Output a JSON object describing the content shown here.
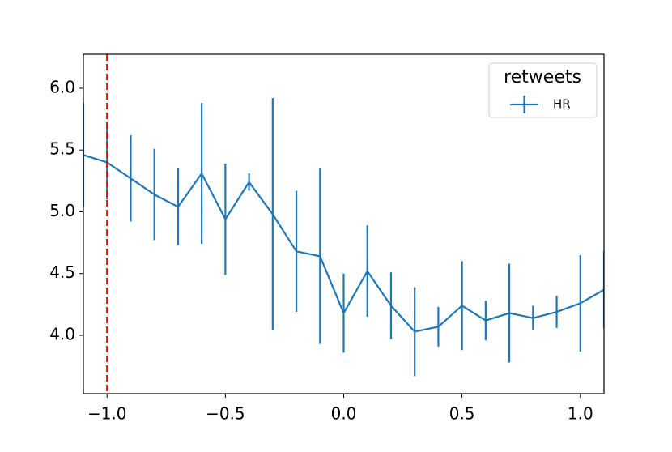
{
  "chart_data": {
    "type": "errorbar-line",
    "x": [
      -1.1,
      -1.0,
      -0.9,
      -0.8,
      -0.7,
      -0.6,
      -0.5,
      -0.4,
      -0.3,
      -0.2,
      -0.1,
      0.0,
      0.1,
      0.2,
      0.3,
      0.4,
      0.5,
      0.6,
      0.7,
      0.8,
      0.9,
      1.0,
      1.1
    ],
    "series": [
      {
        "name": "HR",
        "color": "#1f77b4",
        "values": [
          5.46,
          5.4,
          5.27,
          5.14,
          5.04,
          5.31,
          4.94,
          5.24,
          4.98,
          4.68,
          4.64,
          4.18,
          4.52,
          4.24,
          4.03,
          4.07,
          4.24,
          4.12,
          4.18,
          4.14,
          4.19,
          4.26,
          4.37
        ],
        "errors": [
          0.42,
          0.3,
          0.35,
          0.37,
          0.31,
          0.57,
          0.45,
          0.07,
          0.94,
          0.49,
          0.71,
          0.32,
          0.37,
          0.27,
          0.36,
          0.16,
          0.36,
          0.16,
          0.4,
          0.1,
          0.13,
          0.39,
          0.31
        ]
      }
    ],
    "legend_title": "retweets",
    "legend": "upper right",
    "vline": {
      "x": -1.0,
      "color": "#ff0000",
      "style": "dashed"
    },
    "xlim": [
      -1.1,
      1.1
    ],
    "xticks": [
      {
        "value": -1.0,
        "label": "−1.0"
      },
      {
        "value": -0.5,
        "label": "−0.5"
      },
      {
        "value": 0.0,
        "label": "0.0"
      },
      {
        "value": 0.5,
        "label": "0.5"
      },
      {
        "value": 1.0,
        "label": "1.0"
      }
    ],
    "ylim": [
      3.528,
      6.275
    ],
    "yticks": [
      {
        "value": 4.0,
        "label": "4.0"
      },
      {
        "value": 4.5,
        "label": "4.5"
      },
      {
        "value": 5.0,
        "label": "5.0"
      },
      {
        "value": 5.5,
        "label": "5.5"
      },
      {
        "value": 6.0,
        "label": "6.0"
      }
    ]
  }
}
